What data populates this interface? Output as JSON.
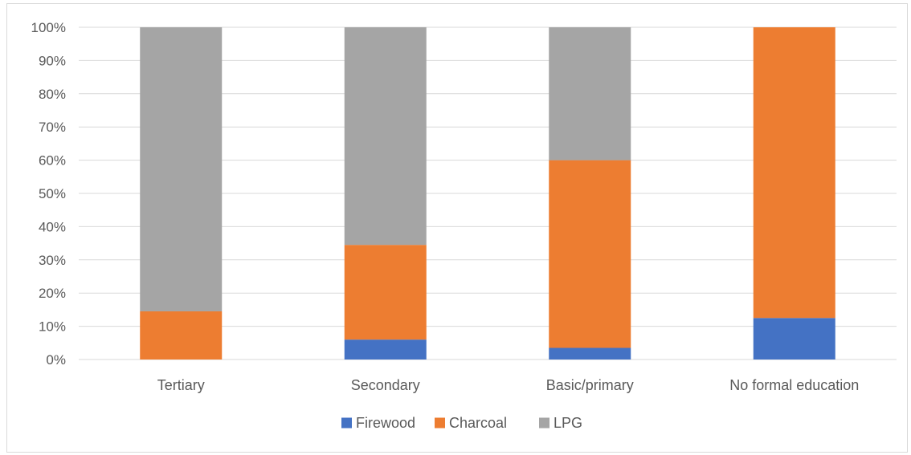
{
  "chart_data": {
    "type": "bar",
    "stacked": true,
    "percent": true,
    "categories": [
      "Tertiary",
      "Secondary",
      "Basic/primary",
      "No formal education"
    ],
    "series": [
      {
        "name": "Firewood",
        "color": "#4472c4",
        "values": [
          0,
          6,
          3.5,
          12.5
        ]
      },
      {
        "name": "Charcoal",
        "color": "#ed7d31",
        "values": [
          14.5,
          28.5,
          56.5,
          87.5
        ]
      },
      {
        "name": "LPG",
        "color": "#a5a5a5",
        "values": [
          85.5,
          65.5,
          40,
          0
        ]
      }
    ],
    "y_ticks": [
      "0%",
      "10%",
      "20%",
      "30%",
      "40%",
      "50%",
      "60%",
      "70%",
      "80%",
      "90%",
      "100%"
    ],
    "ylim": [
      0,
      100
    ],
    "grid": true,
    "legend_position": "bottom"
  }
}
